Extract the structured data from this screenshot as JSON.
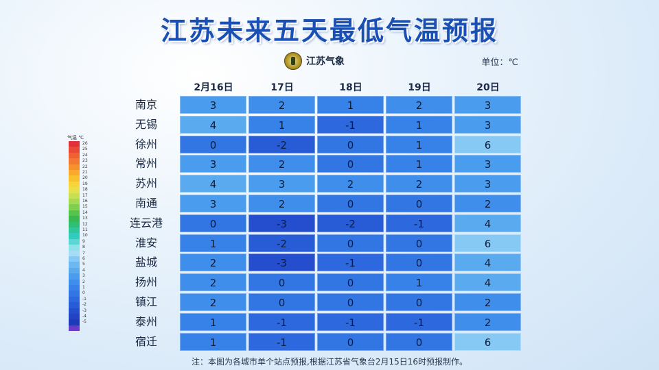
{
  "title": "江苏未来五天最低气温预报",
  "logo_text": "江苏气象",
  "unit": "单位：℃",
  "note": "注：本图为各城市单个站点预报,根据江苏省气象台2月15日16时预报制作。",
  "legend_title": "气温 ℃",
  "legend": [
    {
      "label": "26",
      "color": "#e0303a"
    },
    {
      "label": "25",
      "color": "#e84a36"
    },
    {
      "label": "24",
      "color": "#ee6133"
    },
    {
      "label": "23",
      "color": "#f27a30"
    },
    {
      "label": "22",
      "color": "#f6922e"
    },
    {
      "label": "21",
      "color": "#f9aa2e"
    },
    {
      "label": "20",
      "color": "#fbc02f"
    },
    {
      "label": "19",
      "color": "#f6d43a"
    },
    {
      "label": "18",
      "color": "#e6e04a"
    },
    {
      "label": "17",
      "color": "#c8e050"
    },
    {
      "label": "16",
      "color": "#a6da52"
    },
    {
      "label": "15",
      "color": "#7fd050"
    },
    {
      "label": "14",
      "color": "#55c44c"
    },
    {
      "label": "13",
      "color": "#38b84e"
    },
    {
      "label": "12",
      "color": "#2ebf74"
    },
    {
      "label": "11",
      "color": "#2ec79a"
    },
    {
      "label": "10",
      "color": "#33ccbc"
    },
    {
      "label": "9",
      "color": "#5ed6d6"
    },
    {
      "label": "8",
      "color": "#8ee2e8"
    },
    {
      "label": "7",
      "color": "#a6dcf6"
    },
    {
      "label": "6",
      "color": "#86c9f4"
    },
    {
      "label": "5",
      "color": "#6db8f1"
    },
    {
      "label": "4",
      "color": "#5aaaf0"
    },
    {
      "label": "3",
      "color": "#4a9cee"
    },
    {
      "label": "2",
      "color": "#3f8eeb"
    },
    {
      "label": "1",
      "color": "#3782e8"
    },
    {
      "label": "0",
      "color": "#3276e4"
    },
    {
      "label": "-1",
      "color": "#2d68de"
    },
    {
      "label": "-2",
      "color": "#285bd6"
    },
    {
      "label": "-3",
      "color": "#254ece"
    },
    {
      "label": "-4",
      "color": "#2244c4"
    },
    {
      "label": "-5",
      "color": "#1f3ab8"
    },
    {
      "label": "",
      "color": "#6a3cc6"
    }
  ],
  "chart_data": {
    "type": "heatmap",
    "title": "江苏未来五天最低气温预报",
    "columns": [
      "2月16日",
      "17日",
      "18日",
      "19日",
      "20日"
    ],
    "rows": [
      "南京",
      "无锡",
      "徐州",
      "常州",
      "苏州",
      "南通",
      "连云港",
      "淮安",
      "盐城",
      "扬州",
      "镇江",
      "泰州",
      "宿迁"
    ],
    "values": [
      [
        3,
        2,
        1,
        2,
        3
      ],
      [
        4,
        1,
        -1,
        1,
        3
      ],
      [
        0,
        -2,
        0,
        1,
        6
      ],
      [
        3,
        2,
        0,
        1,
        3
      ],
      [
        4,
        3,
        2,
        2,
        3
      ],
      [
        3,
        2,
        0,
        0,
        2
      ],
      [
        0,
        -3,
        -2,
        -1,
        4
      ],
      [
        1,
        -2,
        0,
        0,
        6
      ],
      [
        2,
        -3,
        -1,
        0,
        4
      ],
      [
        2,
        0,
        0,
        1,
        4
      ],
      [
        2,
        0,
        0,
        0,
        2
      ],
      [
        1,
        -1,
        -1,
        -1,
        2
      ],
      [
        1,
        -1,
        0,
        0,
        6
      ]
    ],
    "unit": "℃"
  }
}
